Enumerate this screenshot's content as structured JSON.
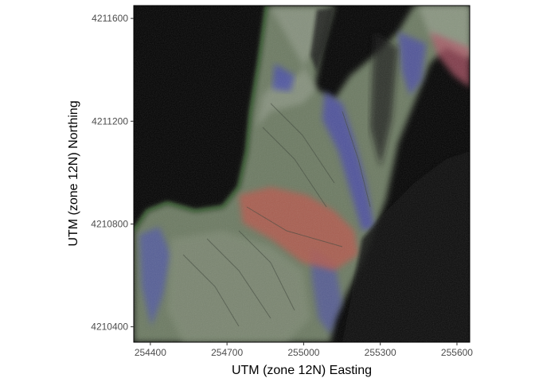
{
  "chart_data": {
    "type": "heatmap",
    "description_kind": "false-color satellite raster (RGB composite)",
    "xlabel": "UTM (zone 12N) Easting",
    "ylabel": "UTM (zone 12N) Northing",
    "xlim": [
      254335,
      255650
    ],
    "ylim": [
      4210340,
      4211650
    ],
    "x_ticks": [
      254400,
      254700,
      255000,
      255300,
      255600
    ],
    "y_ticks": [
      4210400,
      4210800,
      4211200,
      4211600
    ],
    "x_tick_labels": [
      "254400",
      "254700",
      "255000",
      "255300",
      "255600"
    ],
    "y_tick_labels": [
      "4210400",
      "4210800",
      "4211200",
      "4211600"
    ],
    "grid": false,
    "legend": "none",
    "colors": {
      "background": "#000000",
      "terrain_green": "#6f7f62",
      "terrain_blue": "#4a4fa8",
      "terrain_red": "#b85a4e",
      "terrain_light": "#8f9a86",
      "border": "#000000",
      "tick_label": "#4d4d4d"
    }
  }
}
